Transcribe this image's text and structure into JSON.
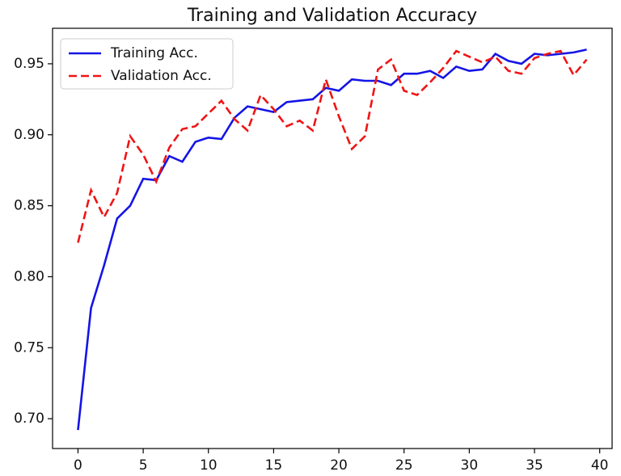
{
  "chart_data": {
    "type": "line",
    "title": "Training and Validation Accuracy",
    "x": [
      0,
      1,
      2,
      3,
      4,
      5,
      6,
      7,
      8,
      9,
      10,
      11,
      12,
      13,
      14,
      15,
      16,
      17,
      18,
      19,
      20,
      21,
      22,
      23,
      24,
      25,
      26,
      27,
      28,
      29,
      30,
      31,
      32,
      33,
      34,
      35,
      36,
      37,
      38,
      39
    ],
    "series": [
      {
        "name": "Training Acc.",
        "color": "#1414e6",
        "linestyle": "solid",
        "values": [
          0.692,
          0.778,
          0.808,
          0.841,
          0.85,
          0.869,
          0.868,
          0.885,
          0.881,
          0.895,
          0.898,
          0.897,
          0.912,
          0.92,
          0.918,
          0.916,
          0.923,
          0.924,
          0.925,
          0.933,
          0.931,
          0.939,
          0.938,
          0.938,
          0.935,
          0.943,
          0.943,
          0.945,
          0.94,
          0.948,
          0.945,
          0.946,
          0.957,
          0.952,
          0.95,
          0.957,
          0.956,
          0.957,
          0.958,
          0.96
        ]
      },
      {
        "name": "Validation Acc.",
        "color": "#f01414",
        "linestyle": "dashed",
        "values": [
          0.824,
          0.861,
          0.842,
          0.859,
          0.899,
          0.886,
          0.867,
          0.891,
          0.904,
          0.906,
          0.915,
          0.924,
          0.911,
          0.903,
          0.928,
          0.918,
          0.906,
          0.91,
          0.903,
          0.939,
          0.913,
          0.89,
          0.899,
          0.946,
          0.953,
          0.931,
          0.928,
          0.937,
          0.947,
          0.959,
          0.955,
          0.951,
          0.955,
          0.945,
          0.943,
          0.954,
          0.957,
          0.959,
          0.942,
          0.953
        ]
      }
    ],
    "xlim": [
      -1.95,
      40.95
    ],
    "xticks": [
      0,
      5,
      10,
      15,
      20,
      25,
      30,
      35,
      40
    ],
    "ylim": [
      0.679,
      0.975
    ],
    "yticks": [
      {
        "value": 0.7,
        "label": "0.70"
      },
      0.75,
      {
        "value": 0.8,
        "label": "0.80"
      },
      0.85,
      {
        "value": 0.9,
        "label": "0.90"
      },
      0.95
    ],
    "grid": false,
    "legend": "upper left"
  }
}
